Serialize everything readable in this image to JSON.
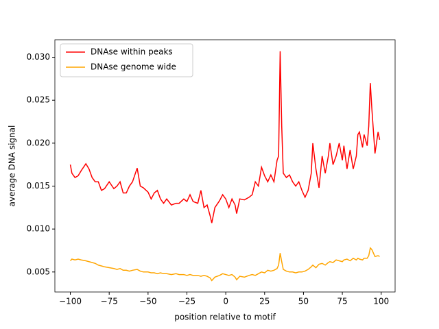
{
  "chart_data": {
    "type": "line",
    "xlabel": "position relative to motif",
    "ylabel": "average DNA signal",
    "x": [
      -100,
      -99,
      -97,
      -95,
      -93,
      -90,
      -88,
      -86,
      -84,
      -82,
      -80,
      -78,
      -75,
      -72,
      -70,
      -68,
      -66,
      -64,
      -62,
      -60,
      -57,
      -55,
      -53,
      -50,
      -48,
      -46,
      -44,
      -42,
      -40,
      -38,
      -35,
      -32,
      -30,
      -27,
      -25,
      -23,
      -21,
      -18,
      -16,
      -14,
      -12,
      -10,
      -9,
      -7,
      -4,
      -2,
      0,
      2,
      4,
      6,
      7,
      9,
      12,
      15,
      17,
      19,
      21,
      23,
      25,
      27,
      29,
      31,
      33,
      34,
      35,
      36,
      37,
      39,
      41,
      43,
      45,
      47,
      49,
      51,
      53,
      55,
      56,
      58,
      60,
      62,
      64,
      66,
      67,
      69,
      71,
      73,
      75,
      76,
      78,
      80,
      82,
      84,
      85,
      86,
      88,
      89,
      91,
      92,
      93,
      94,
      96,
      98,
      99
    ],
    "series": [
      {
        "name": "DNAse within peaks",
        "color": "#ff0000",
        "values": [
          0.0175,
          0.0165,
          0.016,
          0.0162,
          0.0168,
          0.0176,
          0.017,
          0.016,
          0.0155,
          0.0155,
          0.0145,
          0.0147,
          0.0155,
          0.0147,
          0.015,
          0.0155,
          0.0142,
          0.0142,
          0.015,
          0.0155,
          0.0171,
          0.015,
          0.0148,
          0.0143,
          0.0135,
          0.0142,
          0.0145,
          0.0135,
          0.013,
          0.0135,
          0.0128,
          0.013,
          0.013,
          0.0135,
          0.0132,
          0.014,
          0.0132,
          0.013,
          0.0145,
          0.0125,
          0.0128,
          0.0115,
          0.0107,
          0.0125,
          0.0133,
          0.014,
          0.0135,
          0.0125,
          0.0135,
          0.0128,
          0.0118,
          0.0135,
          0.0134,
          0.0137,
          0.014,
          0.0155,
          0.015,
          0.0172,
          0.0162,
          0.0155,
          0.0163,
          0.0155,
          0.018,
          0.0185,
          0.0307,
          0.022,
          0.0165,
          0.016,
          0.0163,
          0.0155,
          0.015,
          0.0155,
          0.0145,
          0.0137,
          0.0145,
          0.0165,
          0.02,
          0.017,
          0.0148,
          0.0185,
          0.0165,
          0.0185,
          0.02,
          0.0175,
          0.0185,
          0.02,
          0.018,
          0.0197,
          0.017,
          0.0192,
          0.017,
          0.0185,
          0.021,
          0.0213,
          0.0195,
          0.021,
          0.0197,
          0.022,
          0.027,
          0.024,
          0.0188,
          0.0213,
          0.0204
        ]
      },
      {
        "name": "DNAse genome wide",
        "color": "#ffa500",
        "values": [
          0.0063,
          0.0065,
          0.0064,
          0.0065,
          0.0064,
          0.0063,
          0.0062,
          0.0061,
          0.006,
          0.0058,
          0.0057,
          0.0056,
          0.0055,
          0.0054,
          0.0053,
          0.0054,
          0.0052,
          0.0052,
          0.0051,
          0.0052,
          0.0053,
          0.0051,
          0.005,
          0.005,
          0.0049,
          0.0049,
          0.0048,
          0.0049,
          0.0048,
          0.0048,
          0.0047,
          0.0048,
          0.0047,
          0.0047,
          0.0046,
          0.0047,
          0.0046,
          0.0046,
          0.0045,
          0.0046,
          0.0045,
          0.0043,
          0.004,
          0.0044,
          0.0046,
          0.0048,
          0.0047,
          0.0046,
          0.0047,
          0.0044,
          0.0041,
          0.0045,
          0.0044,
          0.0046,
          0.0047,
          0.0046,
          0.0048,
          0.005,
          0.0049,
          0.0052,
          0.0051,
          0.0052,
          0.0054,
          0.0058,
          0.0072,
          0.0062,
          0.0053,
          0.0051,
          0.005,
          0.005,
          0.0049,
          0.005,
          0.005,
          0.0051,
          0.0053,
          0.0056,
          0.0058,
          0.0055,
          0.0059,
          0.006,
          0.0058,
          0.0061,
          0.0062,
          0.0061,
          0.0064,
          0.0063,
          0.0062,
          0.0064,
          0.0065,
          0.0063,
          0.0066,
          0.0064,
          0.0066,
          0.0065,
          0.0064,
          0.0066,
          0.0066,
          0.0069,
          0.0078,
          0.0076,
          0.0068,
          0.0069,
          0.0068
        ]
      }
    ],
    "xlim": [
      -109.95,
      108.95
    ],
    "xticks": [
      {
        "value": -100,
        "label": "−100"
      },
      {
        "value": -75,
        "label": "−75"
      },
      {
        "value": -50,
        "label": "−50"
      },
      {
        "value": -25,
        "label": "−25"
      },
      0,
      25,
      50,
      75,
      100
    ],
    "ylim": [
      0.00267,
      0.03204
    ],
    "yticks": [
      0.005,
      {
        "value": 0.01,
        "label": "0.010"
      },
      0.015,
      {
        "value": 0.02,
        "label": "0.020"
      },
      0.025,
      {
        "value": 0.03,
        "label": "0.030"
      }
    ],
    "grid": false,
    "legend": "upper left"
  }
}
